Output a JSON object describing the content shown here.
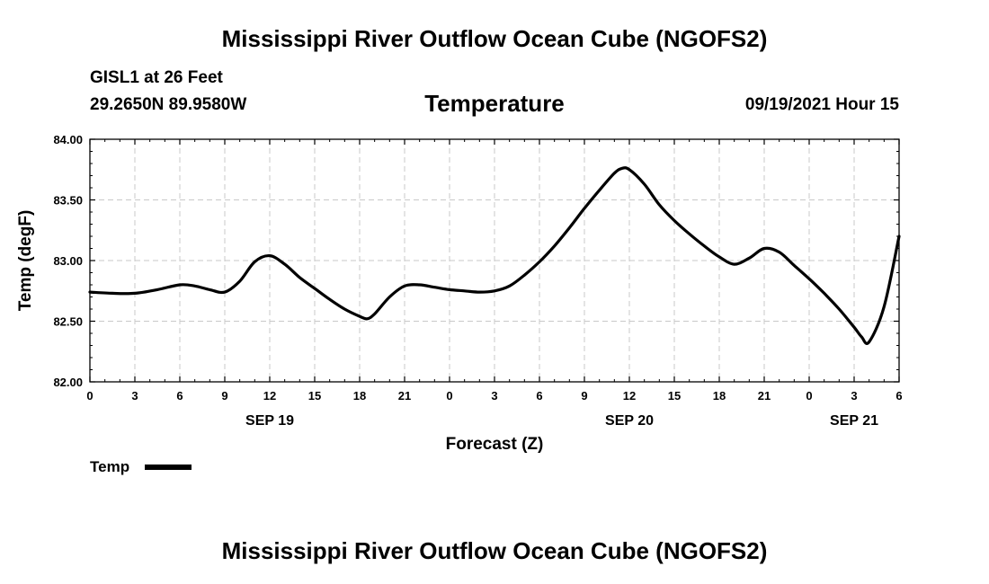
{
  "header": {
    "title": "Mississippi River Outflow Ocean Cube (NGOFS2)",
    "station": "GISL1 at 26 Feet",
    "coordinates": "29.2650N  89.9580W",
    "variable": "Temperature",
    "datetime": "09/19/2021 Hour 15"
  },
  "footer": {
    "title": "Mississippi River Outflow Ocean Cube (NGOFS2)"
  },
  "legend": {
    "label": "Temp"
  },
  "chart_data": {
    "type": "line",
    "title": "Temperature",
    "xlabel": "Forecast (Z)",
    "ylabel": "Temp (degF)",
    "ylim": [
      82.0,
      84.0
    ],
    "yticks": [
      82.0,
      82.5,
      83.0,
      83.5,
      84.0
    ],
    "ytick_labels": [
      "82.00",
      "82.50",
      "83.00",
      "83.50",
      "84.00"
    ],
    "xlim": [
      0,
      54
    ],
    "xticks": [
      0,
      3,
      6,
      9,
      12,
      15,
      18,
      21,
      24,
      27,
      30,
      33,
      36,
      39,
      42,
      45,
      48,
      51,
      54
    ],
    "xtick_labels": [
      "0",
      "3",
      "6",
      "9",
      "12",
      "15",
      "18",
      "21",
      "0",
      "3",
      "6",
      "9",
      "12",
      "15",
      "18",
      "21",
      "0",
      "3",
      "6"
    ],
    "date_labels": [
      {
        "x": 12,
        "label": "SEP 19"
      },
      {
        "x": 36,
        "label": "SEP 20"
      },
      {
        "x": 51,
        "label": "SEP 21"
      }
    ],
    "grid": true,
    "line_color": "#000000",
    "series": [
      {
        "name": "Temp",
        "x": [
          0,
          1.5,
          3,
          4.5,
          6,
          7,
          8,
          9,
          10,
          11,
          12,
          13,
          14,
          15,
          16,
          17,
          18,
          18.5,
          19,
          20,
          21,
          22,
          23,
          24,
          25,
          26,
          27,
          28,
          29,
          30,
          31,
          32,
          33,
          34,
          35,
          35.5,
          36,
          37,
          38,
          39,
          40,
          41,
          42,
          43,
          44,
          45,
          46,
          47,
          48,
          49,
          50,
          51,
          51.5,
          52,
          53,
          54
        ],
        "values": [
          82.74,
          82.73,
          82.73,
          82.76,
          82.8,
          82.79,
          82.76,
          82.74,
          82.83,
          82.99,
          83.04,
          82.97,
          82.86,
          82.77,
          82.68,
          82.6,
          82.54,
          82.52,
          82.56,
          82.7,
          82.79,
          82.8,
          82.78,
          82.76,
          82.75,
          82.74,
          82.75,
          82.79,
          82.88,
          82.99,
          83.12,
          83.27,
          83.43,
          83.58,
          83.72,
          83.76,
          83.75,
          83.63,
          83.46,
          83.33,
          83.22,
          83.12,
          83.03,
          82.97,
          83.02,
          83.1,
          83.07,
          82.96,
          82.85,
          82.73,
          82.6,
          82.45,
          82.37,
          82.33,
          82.62,
          83.2
        ]
      }
    ]
  }
}
